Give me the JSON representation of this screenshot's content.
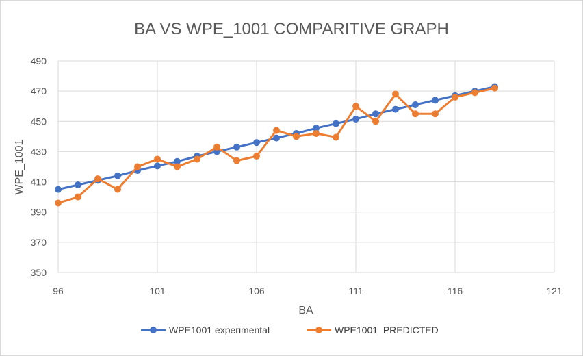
{
  "chart_data": {
    "type": "line",
    "title": "BA VS WPE_1001 COMPARITIVE GRAPH",
    "xlabel": "BA",
    "ylabel": "WPE_1001",
    "xlim": [
      96,
      121
    ],
    "ylim": [
      350,
      490
    ],
    "xticks": [
      96,
      101,
      106,
      111,
      116,
      121
    ],
    "yticks": [
      350,
      370,
      390,
      410,
      430,
      450,
      470,
      490
    ],
    "grid": true,
    "legend_position": "bottom",
    "x": [
      96,
      97,
      98,
      99,
      100,
      101,
      102,
      103,
      104,
      105,
      106,
      107,
      108,
      109,
      110,
      111,
      112,
      113,
      114,
      115,
      116,
      117,
      118
    ],
    "series": [
      {
        "name": "WPE1001 experimental",
        "color": "#4472c4",
        "values": [
          405,
          408,
          411,
          414,
          417.5,
          420.5,
          423.5,
          427,
          430,
          433,
          436,
          439,
          442,
          445.5,
          448.5,
          451.5,
          455,
          458,
          461,
          464,
          467,
          470,
          473
        ]
      },
      {
        "name": "WPE1001_PREDICTED",
        "color": "#ed7d31",
        "values": [
          396,
          400,
          412,
          405,
          420,
          425,
          420,
          425,
          433,
          424,
          427,
          444,
          440,
          442,
          439.5,
          460,
          450,
          468,
          455,
          455,
          466,
          469,
          472
        ]
      }
    ]
  }
}
